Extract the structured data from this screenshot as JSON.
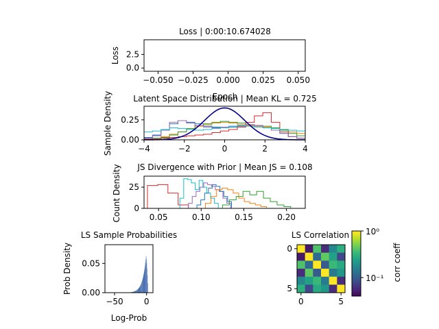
{
  "chart_data": [
    {
      "type": "line",
      "title": "Loss | 0:00:10.674028",
      "xlabel": "Epoch",
      "ylabel": "Loss",
      "xlim": [
        -0.06,
        0.055
      ],
      "ylim": [
        -0.6,
        5.2
      ],
      "xticks": [
        "−0.050",
        "−0.025",
        "0.000",
        "0.025",
        "0.050"
      ],
      "yticks": [
        "0.0",
        "2.5"
      ],
      "series": []
    },
    {
      "type": "line",
      "title": "Latent Space Distribution | Mean KL = 0.725",
      "xlabel": "",
      "ylabel": "Sample Density",
      "xlim": [
        -4,
        4
      ],
      "ylim": [
        0,
        0.42
      ],
      "xticks": [
        "−4",
        "−2",
        "0",
        "2",
        "4"
      ],
      "yticks": [
        "0.00",
        "0.25"
      ],
      "prior": {
        "color": "#00008b",
        "mean": 0,
        "std": 1
      },
      "series": [
        {
          "color": "#1f77b4",
          "values": [
            0.03,
            0.06,
            0.12,
            0.2,
            0.24,
            0.22,
            0.2,
            0.17,
            0.16,
            0.15,
            0.16,
            0.17,
            0.18,
            0.17,
            0.15,
            0.12,
            0.08,
            0.04,
            0.02
          ]
        },
        {
          "color": "#ff7f0e",
          "values": [
            0.01,
            0.02,
            0.04,
            0.07,
            0.1,
            0.14,
            0.17,
            0.19,
            0.21,
            0.22,
            0.21,
            0.19,
            0.18,
            0.17,
            0.16,
            0.15,
            0.13,
            0.1,
            0.08
          ]
        },
        {
          "color": "#2ca02c",
          "values": [
            0.01,
            0.02,
            0.03,
            0.06,
            0.1,
            0.14,
            0.18,
            0.2,
            0.22,
            0.23,
            0.22,
            0.21,
            0.19,
            0.18,
            0.17,
            0.15,
            0.12,
            0.08,
            0.05
          ]
        },
        {
          "color": "#d62728",
          "values": [
            0.01,
            0.01,
            0.02,
            0.03,
            0.04,
            0.05,
            0.06,
            0.07,
            0.09,
            0.11,
            0.13,
            0.16,
            0.22,
            0.3,
            0.34,
            0.22,
            0.1,
            0.04,
            0.02
          ]
        },
        {
          "color": "#9467bd",
          "values": [
            0.02,
            0.05,
            0.12,
            0.22,
            0.24,
            0.21,
            0.18,
            0.16,
            0.15,
            0.16,
            0.17,
            0.18,
            0.19,
            0.18,
            0.15,
            0.12,
            0.08,
            0.04,
            0.02
          ]
        },
        {
          "color": "#17becf",
          "values": [
            0.1,
            0.11,
            0.13,
            0.15,
            0.14,
            0.13,
            0.12,
            0.13,
            0.14,
            0.15,
            0.17,
            0.18,
            0.17,
            0.16,
            0.15,
            0.14,
            0.13,
            0.12,
            0.11
          ]
        }
      ]
    },
    {
      "type": "line",
      "title": "JS Divergence with Prior | Mean JS = 0.108",
      "xlabel": "",
      "ylabel": "Count Density",
      "xlim": [
        0.033,
        0.222
      ],
      "ylim": [
        0,
        38
      ],
      "xticks": [
        "0.05",
        "0.10",
        "0.15",
        "0.20"
      ],
      "yticks": [
        "0",
        "25"
      ],
      "series": [
        {
          "color": "#d62728",
          "start": 0.037,
          "width": 0.012,
          "values": [
            27,
            28,
            18,
            4
          ]
        },
        {
          "color": "#17becf",
          "start": 0.075,
          "width": 0.0045,
          "values": [
            12,
            35,
            34,
            30,
            22,
            33,
            25,
            18,
            12,
            6
          ]
        },
        {
          "color": "#9467bd",
          "start": 0.085,
          "width": 0.0045,
          "values": [
            6,
            14,
            20,
            25,
            30,
            28,
            26,
            22,
            20,
            12,
            6
          ]
        },
        {
          "color": "#1f77b4",
          "start": 0.095,
          "width": 0.0045,
          "values": [
            4,
            10,
            18,
            24,
            28,
            26,
            20,
            14,
            8
          ]
        },
        {
          "color": "#ff7f0e",
          "start": 0.105,
          "width": 0.0065,
          "values": [
            6,
            14,
            22,
            24,
            22,
            18,
            12,
            8,
            6,
            4,
            2
          ]
        },
        {
          "color": "#2ca02c",
          "start": 0.125,
          "width": 0.008,
          "values": [
            4,
            10,
            14,
            20,
            16,
            20,
            12,
            8,
            4,
            2
          ]
        }
      ]
    },
    {
      "type": "bar",
      "title": "LS Sample Probabilities",
      "xlabel": "Log-Prob",
      "ylabel": "Prob Density",
      "xlim": [
        -65,
        10
      ],
      "ylim": [
        0,
        0.082
      ],
      "xticks": [
        "−50",
        "0"
      ],
      "yticks": [
        "0.00",
        "0.05"
      ],
      "color": "#4c72b0"
    },
    {
      "type": "heatmap",
      "title": "LS Correlation",
      "xlabel": "",
      "ylabel": "",
      "xticks": [
        "0",
        "5"
      ],
      "yticks": [
        "0",
        "5"
      ],
      "colorbar_label": "corr coeff",
      "colorbar_ticks": [
        "10⁰",
        "10⁻¹"
      ],
      "colorscale": "viridis",
      "matrix": [
        [
          1.0,
          0.05,
          0.4,
          0.06,
          0.18,
          0.3
        ],
        [
          0.05,
          1.0,
          0.12,
          0.45,
          0.25,
          0.08
        ],
        [
          0.4,
          0.12,
          1.0,
          0.1,
          0.35,
          0.28
        ],
        [
          0.06,
          0.45,
          0.1,
          1.0,
          0.15,
          0.22
        ],
        [
          0.18,
          0.25,
          0.35,
          0.15,
          1.0,
          0.06
        ],
        [
          0.3,
          0.08,
          0.28,
          0.22,
          0.06,
          1.0
        ]
      ]
    }
  ]
}
